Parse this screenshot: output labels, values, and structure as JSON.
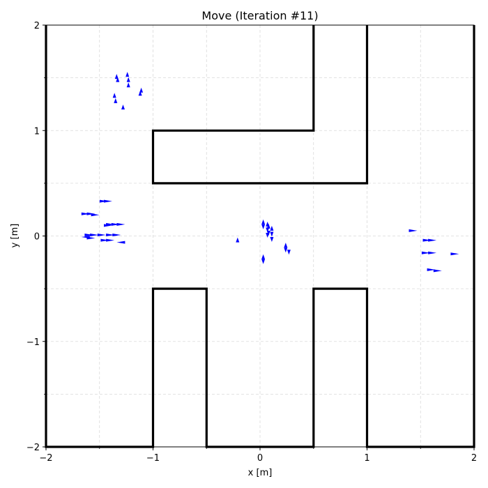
{
  "chart_data": {
    "type": "scatter",
    "title": "Move (Iteration #11)",
    "xlabel": "x [m]",
    "ylabel": "y [m]",
    "xlim": [
      -2,
      2
    ],
    "ylim": [
      -2,
      2
    ],
    "xticks": [
      -2,
      -1,
      0,
      1,
      2
    ],
    "yticks": [
      -2,
      -1,
      0,
      1,
      2
    ],
    "xtick_labels": [
      "−2",
      "−1",
      "0",
      "1",
      "2"
    ],
    "ytick_labels": [
      "−2",
      "−1",
      "0",
      "1",
      "2"
    ],
    "minor_ticks": [
      -1.5,
      -0.5,
      0.5,
      1.5
    ],
    "grid": true,
    "wall_color": "#000000",
    "particle_color": "#0000ff",
    "walls": [
      [
        [
          0.5,
          2.0
        ],
        [
          0.5,
          1.0
        ],
        [
          -1.0,
          1.0
        ],
        [
          -1.0,
          0.5
        ],
        [
          1.0,
          0.5
        ],
        [
          1.0,
          2.0
        ]
      ],
      [
        [
          2.0,
          2.0
        ],
        [
          2.0,
          -2.0
        ],
        [
          1.0,
          -2.0
        ],
        [
          1.0,
          -0.5
        ],
        [
          0.5,
          -0.5
        ],
        [
          0.5,
          -2.0
        ],
        [
          -0.5,
          -2.0
        ],
        [
          -0.5,
          -0.5
        ],
        [
          -1.0,
          -0.5
        ],
        [
          -1.0,
          -2.0
        ],
        [
          -2.0,
          -2.0
        ],
        [
          -2.0,
          2.0
        ]
      ]
    ],
    "particles": [
      {
        "x": -1.34,
        "y": 1.51,
        "dir": "up"
      },
      {
        "x": -1.33,
        "y": 1.48,
        "dir": "up"
      },
      {
        "x": -1.24,
        "y": 1.53,
        "dir": "up"
      },
      {
        "x": -1.23,
        "y": 1.48,
        "dir": "up"
      },
      {
        "x": -1.23,
        "y": 1.43,
        "dir": "up"
      },
      {
        "x": -1.11,
        "y": 1.38,
        "dir": "up"
      },
      {
        "x": -1.12,
        "y": 1.35,
        "dir": "up"
      },
      {
        "x": -1.36,
        "y": 1.33,
        "dir": "up"
      },
      {
        "x": -1.35,
        "y": 1.28,
        "dir": "up"
      },
      {
        "x": -1.28,
        "y": 1.22,
        "dir": "up"
      },
      {
        "x": -1.46,
        "y": 0.33,
        "dir": "right"
      },
      {
        "x": -1.42,
        "y": 0.33,
        "dir": "right"
      },
      {
        "x": -1.63,
        "y": 0.21,
        "dir": "right"
      },
      {
        "x": -1.58,
        "y": 0.21,
        "dir": "right"
      },
      {
        "x": -1.54,
        "y": 0.2,
        "dir": "right"
      },
      {
        "x": -1.4,
        "y": 0.11,
        "dir": "right"
      },
      {
        "x": -1.35,
        "y": 0.11,
        "dir": "right"
      },
      {
        "x": -1.3,
        "y": 0.11,
        "dir": "right"
      },
      {
        "x": -1.42,
        "y": 0.1,
        "dir": "right"
      },
      {
        "x": -1.6,
        "y": 0.01,
        "dir": "right"
      },
      {
        "x": -1.55,
        "y": 0.01,
        "dir": "right"
      },
      {
        "x": -1.48,
        "y": 0.01,
        "dir": "right"
      },
      {
        "x": -1.4,
        "y": 0.01,
        "dir": "right"
      },
      {
        "x": -1.34,
        "y": 0.01,
        "dir": "right"
      },
      {
        "x": -1.63,
        "y": -0.01,
        "dir": "left"
      },
      {
        "x": -1.58,
        "y": -0.02,
        "dir": "right"
      },
      {
        "x": -1.45,
        "y": -0.04,
        "dir": "right"
      },
      {
        "x": -1.4,
        "y": -0.04,
        "dir": "right"
      },
      {
        "x": -1.3,
        "y": -0.06,
        "dir": "left"
      },
      {
        "x": 0.03,
        "y": 0.13,
        "dir": "up"
      },
      {
        "x": 0.03,
        "y": 0.09,
        "dir": "down"
      },
      {
        "x": 0.07,
        "y": 0.11,
        "dir": "up"
      },
      {
        "x": 0.07,
        "y": 0.06,
        "dir": "down"
      },
      {
        "x": 0.07,
        "y": 0.01,
        "dir": "down"
      },
      {
        "x": 0.08,
        "y": 0.09,
        "dir": "up"
      },
      {
        "x": 0.08,
        "y": 0.03,
        "dir": "down"
      },
      {
        "x": 0.11,
        "y": 0.07,
        "dir": "up"
      },
      {
        "x": 0.11,
        "y": 0.02,
        "dir": "down"
      },
      {
        "x": 0.11,
        "y": -0.03,
        "dir": "down"
      },
      {
        "x": -0.21,
        "y": -0.04,
        "dir": "up"
      },
      {
        "x": 0.24,
        "y": -0.09,
        "dir": "up"
      },
      {
        "x": 0.24,
        "y": -0.13,
        "dir": "down"
      },
      {
        "x": 0.27,
        "y": -0.15,
        "dir": "down"
      },
      {
        "x": 0.03,
        "y": -0.2,
        "dir": "up"
      },
      {
        "x": 0.03,
        "y": -0.24,
        "dir": "down"
      },
      {
        "x": 1.43,
        "y": 0.05,
        "dir": "right"
      },
      {
        "x": 1.56,
        "y": -0.04,
        "dir": "right"
      },
      {
        "x": 1.61,
        "y": -0.04,
        "dir": "right"
      },
      {
        "x": 1.55,
        "y": -0.16,
        "dir": "right"
      },
      {
        "x": 1.61,
        "y": -0.16,
        "dir": "right"
      },
      {
        "x": 1.82,
        "y": -0.17,
        "dir": "right"
      },
      {
        "x": 1.6,
        "y": -0.32,
        "dir": "right"
      },
      {
        "x": 1.66,
        "y": -0.33,
        "dir": "right"
      }
    ]
  }
}
